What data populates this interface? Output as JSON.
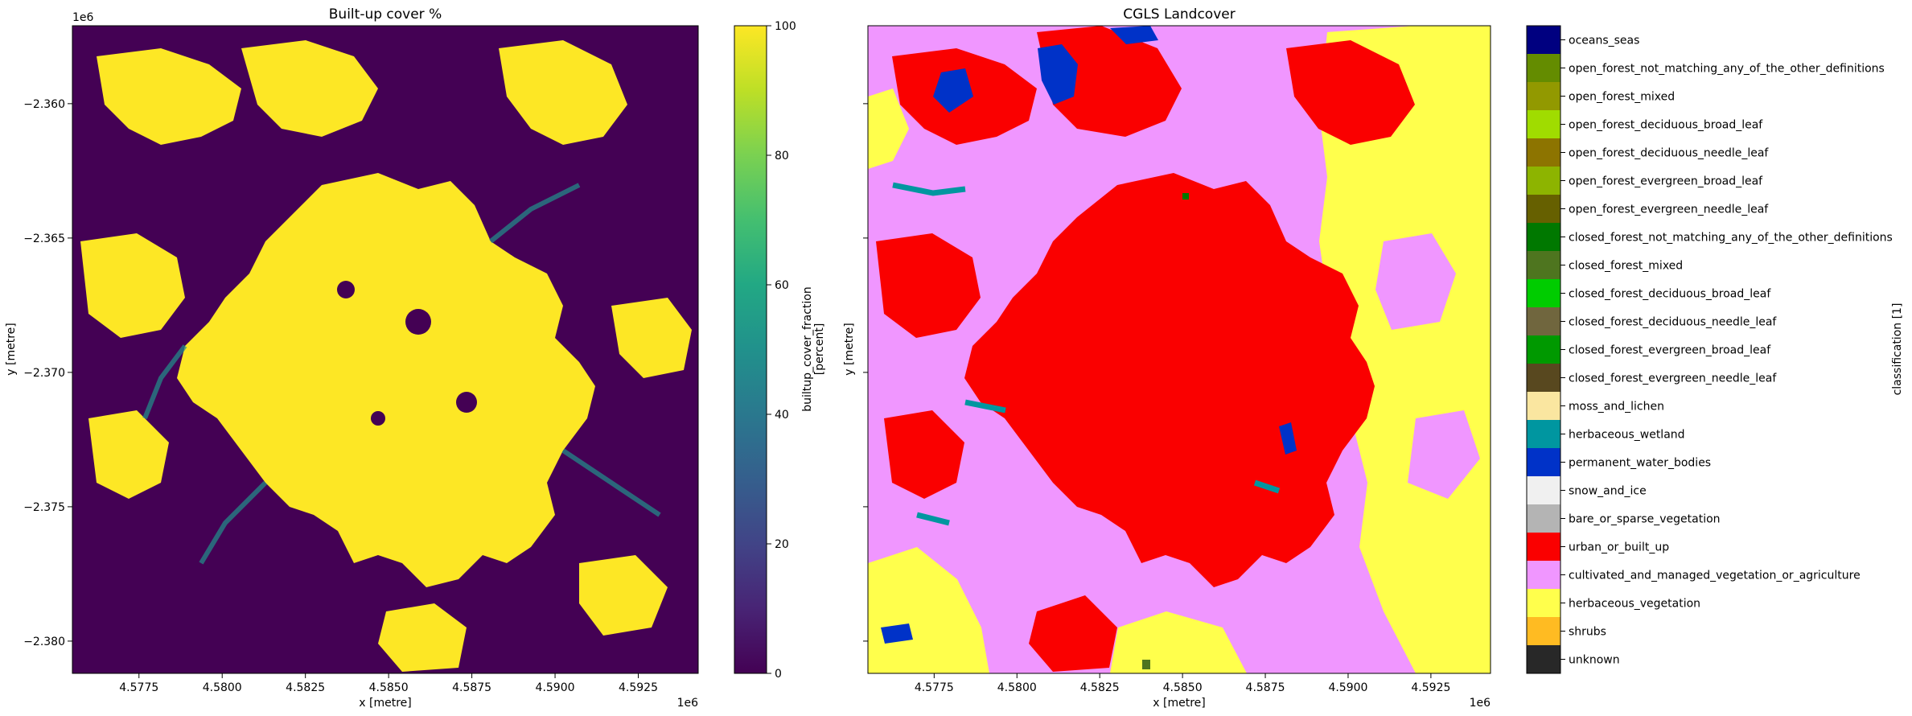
{
  "chart_data": [
    {
      "type": "heatmap",
      "title": "Built-up cover %",
      "xlabel": "x [metre]",
      "ylabel": "y [metre]",
      "x_offset_label": "1e6",
      "y_offset_label": "1e6",
      "x_ticks": [
        "4.5775",
        "4.5800",
        "4.5825",
        "4.5850",
        "4.5875",
        "4.5900",
        "4.5925"
      ],
      "x_tick_values": [
        4.5775,
        4.58,
        4.5825,
        4.585,
        4.5875,
        4.59,
        4.5925
      ],
      "xlim": [
        4.5755,
        4.5943
      ],
      "y_ticks": [
        "−2.360",
        "−2.365",
        "−2.370",
        "−2.375",
        "−2.380"
      ],
      "y_tick_values": [
        -2.36,
        -2.365,
        -2.37,
        -2.375,
        -2.38
      ],
      "ylim": [
        -2.3812,
        -2.3571
      ],
      "colorbar": {
        "label_line1": "builtup_cover_fraction",
        "label_line2": "[percent]",
        "ticks": [
          "0",
          "20",
          "40",
          "60",
          "80",
          "100"
        ],
        "tick_values": [
          0,
          20,
          40,
          60,
          80,
          100
        ],
        "range": [
          0,
          100
        ],
        "colormap": "viridis"
      },
      "dominant_values": {
        "background": 0,
        "urban_core": 100
      }
    },
    {
      "type": "heatmap",
      "title": "CGLS Landcover",
      "xlabel": "x [metre]",
      "ylabel": "y [metre]",
      "x_offset_label": "1e6",
      "x_ticks": [
        "4.5775",
        "4.5800",
        "4.5825",
        "4.5850",
        "4.5875",
        "4.5900",
        "4.5925"
      ],
      "x_tick_values": [
        4.5775,
        4.58,
        4.5825,
        4.585,
        4.5875,
        4.59,
        4.5925
      ],
      "xlim": [
        4.5755,
        4.5943
      ],
      "ylim": [
        -2.3812,
        -2.3571
      ],
      "colorbar": {
        "label": "classification [1]",
        "classes": [
          {
            "name": "oceans_seas",
            "color": "#000080"
          },
          {
            "name": "open_forest_not_matching_any_of_the_other_definitions",
            "color": "#648c00"
          },
          {
            "name": "open_forest_mixed",
            "color": "#929900"
          },
          {
            "name": "open_forest_deciduous_broad_leaf",
            "color": "#a0dc00"
          },
          {
            "name": "open_forest_deciduous_needle_leaf",
            "color": "#8d7400"
          },
          {
            "name": "open_forest_evergreen_broad_leaf",
            "color": "#8db400"
          },
          {
            "name": "open_forest_evergreen_needle_leaf",
            "color": "#666000"
          },
          {
            "name": "closed_forest_not_matching_any_of_the_other_definitions",
            "color": "#007800"
          },
          {
            "name": "closed_forest_mixed",
            "color": "#4e751f"
          },
          {
            "name": "closed_forest_deciduous_broad_leaf",
            "color": "#00cc00"
          },
          {
            "name": "closed_forest_deciduous_needle_leaf",
            "color": "#70663e"
          },
          {
            "name": "closed_forest_evergreen_broad_leaf",
            "color": "#009900"
          },
          {
            "name": "closed_forest_evergreen_needle_leaf",
            "color": "#58481f"
          },
          {
            "name": "moss_and_lichen",
            "color": "#fae6a0"
          },
          {
            "name": "herbaceous_wetland",
            "color": "#0096a0"
          },
          {
            "name": "permanent_water_bodies",
            "color": "#0032c8"
          },
          {
            "name": "snow_and_ice",
            "color": "#f0f0f0"
          },
          {
            "name": "bare_or_sparse_vegetation",
            "color": "#b4b4b4"
          },
          {
            "name": "urban_or_built_up",
            "color": "#fa0000"
          },
          {
            "name": "cultivated_and_managed_vegetation_or_agriculture",
            "color": "#f096ff"
          },
          {
            "name": "herbaceous_vegetation",
            "color": "#ffff4c"
          },
          {
            "name": "shrubs",
            "color": "#ffbb22"
          },
          {
            "name": "unknown",
            "color": "#282828"
          }
        ]
      }
    }
  ]
}
